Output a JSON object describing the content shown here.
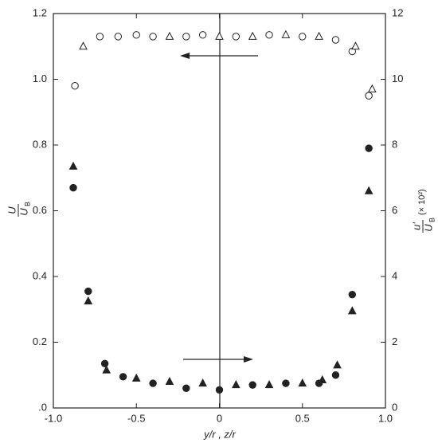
{
  "chart_data": {
    "type": "scatter",
    "xlabel": "y/r , z/r",
    "ylabel": {
      "num": "U",
      "den": "U",
      "sub": "B"
    },
    "y2label": {
      "num": "u'",
      "den": "U",
      "sub": "B",
      "suffix": "(× 10²)"
    },
    "xlim": [
      -1,
      1
    ],
    "xticks": [
      {
        "value": -1,
        "label": "-1.0"
      },
      -0.5,
      0,
      0.5,
      {
        "value": 1,
        "label": "1.0"
      }
    ],
    "ylim": [
      0,
      1.2
    ],
    "yticks": [
      {
        "value": 0,
        "label": ".0"
      },
      0.2,
      0.4,
      0.6,
      0.8,
      {
        "value": 1,
        "label": "1.0"
      },
      1.2
    ],
    "y2lim": [
      0,
      12
    ],
    "y2ticks": [
      0,
      2,
      4,
      6,
      8,
      10,
      12
    ],
    "series": [
      {
        "marker": "circle-open",
        "color": "#222",
        "x": [
          -0.87,
          -0.72,
          -0.61,
          -0.5,
          -0.4,
          -0.2,
          -0.1,
          0.1,
          0.3,
          0.5,
          0.7,
          0.8,
          0.9
        ],
        "values": [
          0.98,
          1.13,
          1.13,
          1.135,
          1.13,
          1.13,
          1.135,
          1.13,
          1.135,
          1.13,
          1.12,
          1.085,
          0.95
        ]
      },
      {
        "marker": "triangle-open",
        "color": "#222",
        "x": [
          -0.82,
          -0.3,
          0,
          0.2,
          0.4,
          0.6,
          0.82,
          0.92
        ],
        "values": [
          1.1,
          1.13,
          1.13,
          1.13,
          1.135,
          1.13,
          1.1,
          0.97
        ]
      },
      {
        "marker": "circle-filled",
        "color": "#222",
        "axis": "y2",
        "x": [
          -0.88,
          -0.79,
          -0.69,
          -0.58,
          -0.4,
          -0.2,
          0,
          0.2,
          0.4,
          0.6,
          0.7,
          0.8,
          0.9
        ],
        "values": [
          6.7,
          3.55,
          1.35,
          0.95,
          0.75,
          0.6,
          0.55,
          0.7,
          0.75,
          0.75,
          1.0,
          3.45,
          7.9
        ]
      },
      {
        "marker": "triangle-filled",
        "color": "#222",
        "axis": "y2",
        "x": [
          -0.88,
          -0.79,
          -0.68,
          -0.5,
          -0.3,
          -0.1,
          0.1,
          0.3,
          0.5,
          0.62,
          0.71,
          0.8,
          0.9
        ],
        "values": [
          7.35,
          3.25,
          1.15,
          0.9,
          0.8,
          0.75,
          0.7,
          0.7,
          0.75,
          0.85,
          1.3,
          2.95,
          6.6
        ]
      }
    ]
  }
}
